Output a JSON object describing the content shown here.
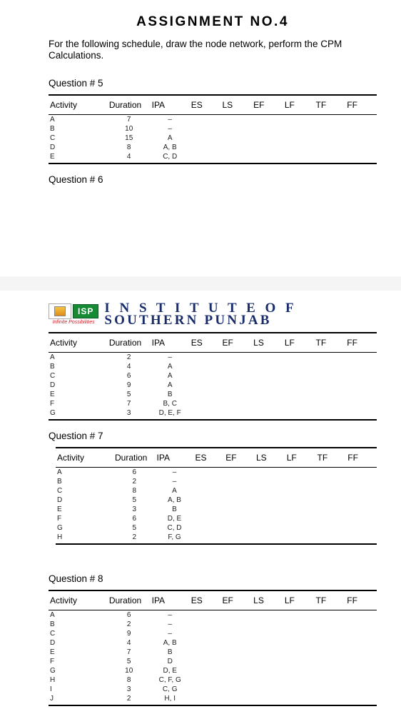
{
  "title": "ASSIGNMENT NO.4",
  "intro": "For the following schedule, draw the node network, perform the CPM Calculations.",
  "questions": {
    "q5": "Question # 5",
    "q6": "Question # 6",
    "q7": "Question # 7",
    "q8": "Question # 8"
  },
  "table_headers_a": [
    "Activity",
    "Duration",
    "IPA",
    "ES",
    "LS",
    "EF",
    "LF",
    "TF",
    "FF"
  ],
  "table_headers_b": [
    "Activity",
    "Duration",
    "IPA",
    "ES",
    "EF",
    "LS",
    "LF",
    "TF",
    "FF"
  ],
  "table5": [
    {
      "a": "A",
      "d": "7",
      "ipa": "–"
    },
    {
      "a": "B",
      "d": "10",
      "ipa": "–"
    },
    {
      "a": "C",
      "d": "15",
      "ipa": "A"
    },
    {
      "a": "D",
      "d": "8",
      "ipa": "A, B"
    },
    {
      "a": "E",
      "d": "4",
      "ipa": "C, D"
    }
  ],
  "table6": [
    {
      "a": "A",
      "d": "2",
      "ipa": "–"
    },
    {
      "a": "B",
      "d": "4",
      "ipa": "A"
    },
    {
      "a": "C",
      "d": "6",
      "ipa": "A"
    },
    {
      "a": "D",
      "d": "9",
      "ipa": "A"
    },
    {
      "a": "E",
      "d": "5",
      "ipa": "B"
    },
    {
      "a": "F",
      "d": "7",
      "ipa": "B, C"
    },
    {
      "a": "G",
      "d": "3",
      "ipa": "D, E, F"
    }
  ],
  "table7": [
    {
      "a": "A",
      "d": "6",
      "ipa": "–"
    },
    {
      "a": "B",
      "d": "2",
      "ipa": "–"
    },
    {
      "a": "C",
      "d": "8",
      "ipa": "A"
    },
    {
      "a": "D",
      "d": "5",
      "ipa": "A, B"
    },
    {
      "a": "E",
      "d": "3",
      "ipa": "B"
    },
    {
      "a": "F",
      "d": "6",
      "ipa": "D, E"
    },
    {
      "a": "G",
      "d": "5",
      "ipa": "C, D"
    },
    {
      "a": "H",
      "d": "2",
      "ipa": "F, G"
    }
  ],
  "table8": [
    {
      "a": "A",
      "d": "6",
      "ipa": "–"
    },
    {
      "a": "B",
      "d": "2",
      "ipa": "–"
    },
    {
      "a": "C",
      "d": "9",
      "ipa": "–"
    },
    {
      "a": "D",
      "d": "4",
      "ipa": "A, B"
    },
    {
      "a": "E",
      "d": "7",
      "ipa": "B"
    },
    {
      "a": "F",
      "d": "5",
      "ipa": "D"
    },
    {
      "a": "G",
      "d": "10",
      "ipa": "D, E"
    },
    {
      "a": "H",
      "d": "8",
      "ipa": "C, F, G"
    },
    {
      "a": "I",
      "d": "3",
      "ipa": "C, G"
    },
    {
      "a": "J",
      "d": "2",
      "ipa": "H, I"
    }
  ],
  "isp": {
    "badge": "ISP",
    "tagline": "Infinite Possibilities",
    "line1": "I N S T I T U T E  O F",
    "line2": "SOUTHERN PUNJAB"
  },
  "styles": {
    "body_width": 562,
    "body_height": 1000,
    "title_fontsize": 19,
    "title_letterspacing": 2.5,
    "row_fontsize": 10,
    "header_fontsize": 12,
    "isp_title_color": "#192c6b",
    "isp_badge_bg": "#168a34",
    "isp_tagline_color": "#d2232a",
    "border_color": "#000000"
  }
}
